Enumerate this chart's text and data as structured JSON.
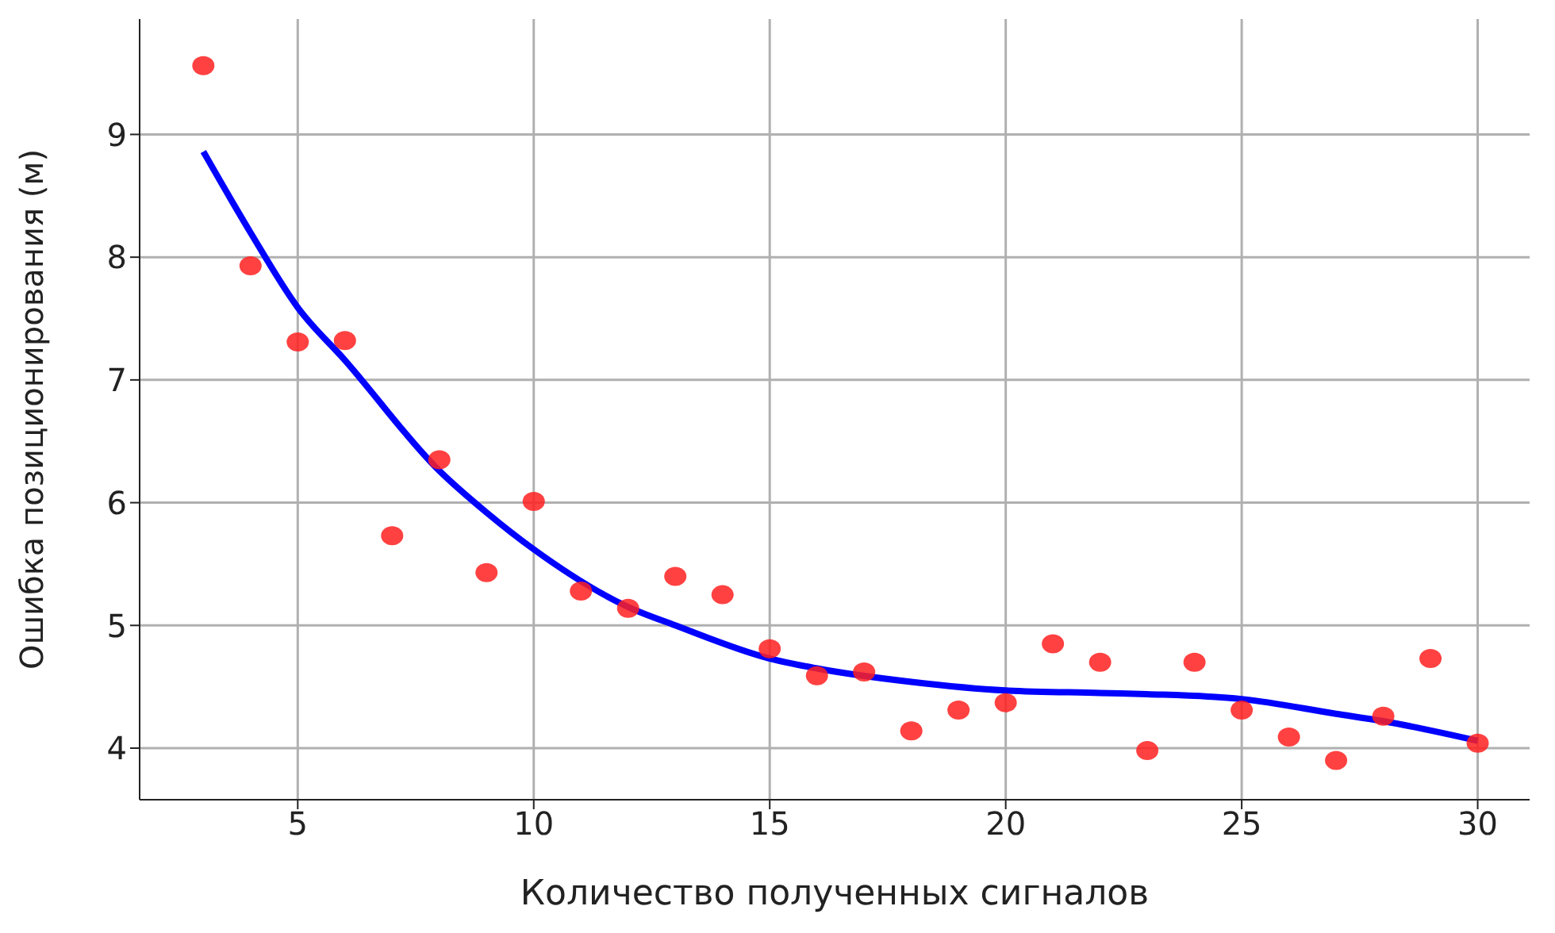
{
  "chart_data": {
    "type": "scatter",
    "xlabel": "Количество полученных сигналов",
    "ylabel": "Ошибка позиционирования (м)",
    "xlim": [
      1.65,
      31.1
    ],
    "xticks": [
      5,
      10,
      15,
      20,
      25,
      30
    ],
    "ylim": [
      3.58,
      9.94
    ],
    "yticks": [
      4,
      5,
      6,
      7,
      8,
      9
    ],
    "grid": true,
    "marker": "circle",
    "series": [
      {
        "color": "#ff2020",
        "x": [
          3,
          4,
          5,
          6,
          7,
          8,
          9,
          10,
          11,
          12,
          13,
          14,
          15,
          16,
          17,
          18,
          19,
          20,
          21,
          22,
          23,
          24,
          25,
          26,
          27,
          28,
          29,
          30
        ],
        "values": [
          9.56,
          7.93,
          7.31,
          7.32,
          5.73,
          6.35,
          5.43,
          6.01,
          5.28,
          5.14,
          5.4,
          5.25,
          4.81,
          4.59,
          4.62,
          4.14,
          4.31,
          4.37,
          4.85,
          4.7,
          3.98,
          4.7,
          4.31,
          4.09,
          3.9,
          4.26,
          4.73,
          4.04
        ]
      },
      {
        "type": "line",
        "color": "#0000ff",
        "marker": "none",
        "line_style": "solid",
        "x": [
          3,
          4,
          5,
          6,
          8,
          9,
          10,
          12,
          13,
          15,
          16,
          18,
          20,
          22,
          23,
          25,
          27,
          28,
          30
        ],
        "values": [
          8.86,
          8.2,
          7.59,
          7.16,
          6.26,
          5.92,
          5.62,
          5.15,
          5.0,
          4.73,
          4.65,
          4.54,
          4.47,
          4.45,
          4.44,
          4.4,
          4.28,
          4.22,
          4.06
        ]
      }
    ]
  }
}
